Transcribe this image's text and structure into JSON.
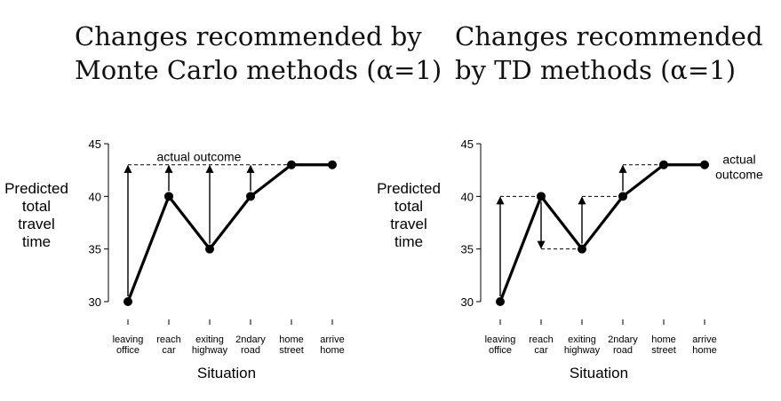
{
  "chart_data": [
    {
      "type": "line",
      "title_lines": [
        "Changes recommended by",
        "Monte Carlo methods (α=1)"
      ],
      "ylabel_lines": [
        "Predicted",
        "total",
        "travel",
        "time"
      ],
      "xlabel": "Situation",
      "categories": [
        [
          "leaving",
          "office"
        ],
        [
          "reach",
          "car"
        ],
        [
          "exiting",
          "highway"
        ],
        [
          "2ndary",
          "road"
        ],
        [
          "home",
          "street"
        ],
        [
          "arrive",
          "home"
        ]
      ],
      "values": [
        30,
        40,
        35,
        40,
        43,
        43
      ],
      "yticks": [
        30,
        35,
        40,
        45
      ],
      "ylim": [
        30,
        45
      ],
      "actual_outcome": 43,
      "annotation_lines": [
        "actual outcome"
      ],
      "annotation_placement": "above-line",
      "updates": [
        {
          "x": 0,
          "from": 30,
          "to": 43
        },
        {
          "x": 1,
          "from": 40,
          "to": 43
        },
        {
          "x": 2,
          "from": 35,
          "to": 43
        },
        {
          "x": 3,
          "from": 40,
          "to": 43
        }
      ],
      "guides": [
        {
          "x1": 0,
          "x2": 4,
          "y": 43
        }
      ]
    },
    {
      "type": "line",
      "title_lines": [
        "Changes recommended",
        "by TD methods (α=1)"
      ],
      "ylabel_lines": [
        "Predicted",
        "total",
        "travel",
        "time"
      ],
      "xlabel": "Situation",
      "categories": [
        [
          "leaving",
          "office"
        ],
        [
          "reach",
          "car"
        ],
        [
          "exiting",
          "highway"
        ],
        [
          "2ndary",
          "road"
        ],
        [
          "home",
          "street"
        ],
        [
          "arrive",
          "home"
        ]
      ],
      "values": [
        30,
        40,
        35,
        40,
        43,
        43
      ],
      "yticks": [
        30,
        35,
        40,
        45
      ],
      "ylim": [
        30,
        45
      ],
      "actual_outcome": 43,
      "annotation_lines": [
        "actual",
        "outcome"
      ],
      "annotation_placement": "right",
      "updates": [
        {
          "x": 0,
          "from": 30,
          "to": 40
        },
        {
          "x": 1,
          "from": 40,
          "to": 35
        },
        {
          "x": 2,
          "from": 35,
          "to": 40
        },
        {
          "x": 3,
          "from": 40,
          "to": 43
        }
      ],
      "guides": [
        {
          "x1": 0,
          "x2": 1,
          "y": 40
        },
        {
          "x1": 1,
          "x2": 2,
          "y": 35
        },
        {
          "x1": 2,
          "x2": 3,
          "y": 40
        },
        {
          "x1": 3,
          "x2": 4,
          "y": 43
        }
      ]
    }
  ]
}
